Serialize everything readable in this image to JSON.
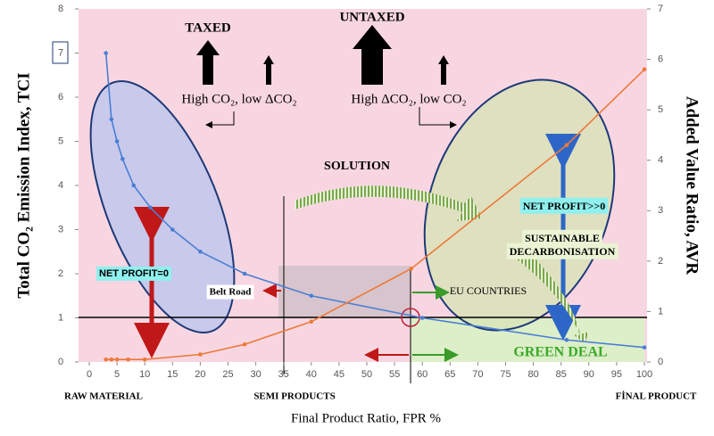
{
  "chart_data": {
    "type": "line",
    "xlabel": "Final Product Ratio, FPR %",
    "ylabel": "Total CO₂ Emission Index, TCI",
    "y2label": "Added Value Ratio, AVR",
    "xlim": [
      0,
      100
    ],
    "xticks": [
      0,
      5,
      10,
      15,
      20,
      25,
      30,
      35,
      40,
      45,
      50,
      55,
      60,
      65,
      70,
      75,
      80,
      85,
      90,
      95,
      100
    ],
    "ylim": [
      0,
      8
    ],
    "yticks": [
      0,
      1,
      2,
      3,
      4,
      5,
      6,
      7,
      8
    ],
    "y2lim": [
      0,
      7
    ],
    "y2ticks": [
      0,
      1,
      2,
      3,
      4,
      5,
      6,
      7
    ],
    "series": [
      {
        "name": "TCI",
        "color": "#4a7fd4",
        "x": [
          3,
          4,
          5,
          6,
          8,
          11,
          15,
          20,
          28,
          40,
          60,
          86,
          100
        ],
        "values": [
          7,
          5.5,
          5,
          4.6,
          4,
          3.5,
          3,
          2.5,
          2,
          1.5,
          1,
          0.5,
          0.33
        ]
      },
      {
        "name": "AVR",
        "color": "#ec7a3a",
        "axis": "y2",
        "x": [
          3,
          4,
          5,
          7,
          10,
          20,
          28,
          40,
          58,
          86,
          100
        ],
        "values": [
          0.05,
          0.05,
          0.05,
          0.05,
          0.05,
          0.15,
          0.35,
          0.8,
          1.85,
          4.3,
          5.8
        ]
      }
    ],
    "categories_marks": [
      "RAW MATERIAL",
      "SEMI PRODUCTS",
      "FİNAL PRODUCT"
    ],
    "annotations": [
      "TAXED",
      "UNTAXED",
      "High CO₂, low ΔCO₂",
      "High ΔCO₂, low CO₂",
      "SOLUTION",
      "NET PROFIT=0",
      "Belt Road",
      "NET PROFIT>>0",
      "SUSTAINABLE",
      "DECARBONISATION",
      "EU COUNTRIES",
      "GREEN DEAL"
    ]
  }
}
